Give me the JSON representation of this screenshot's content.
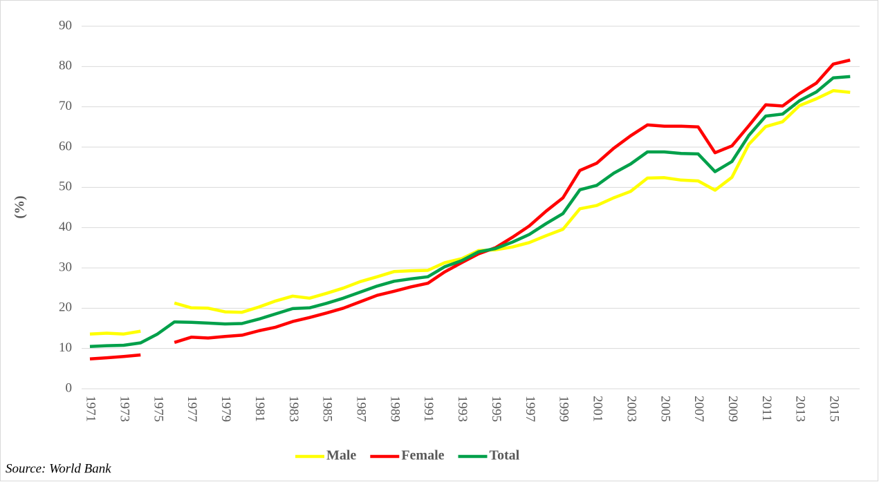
{
  "chart_data": {
    "type": "line",
    "y_label": "(%)",
    "source": "Source: World Bank",
    "categories": [
      "1971",
      null,
      "1973",
      null,
      "1975",
      null,
      "1977",
      null,
      "1979",
      null,
      "1981",
      null,
      "1983",
      null,
      "1985",
      null,
      "1987",
      null,
      "1989",
      null,
      "1991",
      null,
      "1993",
      null,
      "1995",
      null,
      "1997",
      null,
      "1999",
      null,
      "2001",
      null,
      "2003",
      null,
      "2005",
      null,
      "2007",
      null,
      "2009",
      null,
      "2011",
      null,
      "2013",
      null,
      "2015",
      null
    ],
    "series": [
      {
        "name": "Male",
        "color": "#ffff00",
        "values": [
          13.6,
          13.8,
          13.6,
          14.3,
          null,
          21.3,
          20.1,
          20.0,
          19.1,
          19.0,
          20.3,
          21.8,
          23.0,
          22.5,
          23.7,
          25.0,
          26.6,
          27.8,
          29.1,
          29.3,
          29.4,
          31.3,
          32.3,
          34.3,
          34.5,
          35.2,
          36.3,
          38.0,
          39.6,
          44.7,
          45.5,
          47.4,
          49.0,
          52.3,
          52.4,
          51.8,
          51.6,
          49.3,
          52.5,
          60.7,
          65.1,
          66.3,
          70.3,
          72.0,
          74.0,
          73.6
        ]
      },
      {
        "name": "Female",
        "color": "#ff0000",
        "values": [
          7.4,
          7.7,
          8.0,
          8.4,
          null,
          11.5,
          12.8,
          12.6,
          13.0,
          13.3,
          14.4,
          15.3,
          16.7,
          17.7,
          18.8,
          20.0,
          21.6,
          23.2,
          24.2,
          25.3,
          26.2,
          29.0,
          31.3,
          33.5,
          35.0,
          37.6,
          40.4,
          44.1,
          47.4,
          54.2,
          56.0,
          59.7,
          62.8,
          65.5,
          65.2,
          65.2,
          65.0,
          58.6,
          60.3,
          65.3,
          70.5,
          70.2,
          73.3,
          75.9,
          80.6,
          81.6
        ]
      },
      {
        "name": "Total",
        "color": "#00a04a",
        "values": [
          10.5,
          10.7,
          10.8,
          11.4,
          13.6,
          16.6,
          16.5,
          16.3,
          16.1,
          16.2,
          17.3,
          18.6,
          19.9,
          20.1,
          21.2,
          22.5,
          24.0,
          25.5,
          26.7,
          27.3,
          27.8,
          30.3,
          31.8,
          34.0,
          34.8,
          36.4,
          38.3,
          41.0,
          43.5,
          49.4,
          50.5,
          53.5,
          55.8,
          58.8,
          58.8,
          58.4,
          58.3,
          53.9,
          56.4,
          62.9,
          67.7,
          68.2,
          71.5,
          73.7,
          77.2,
          77.5
        ]
      }
    ],
    "ylim": [
      0,
      90
    ],
    "yticks": [
      0,
      10,
      20,
      30,
      40,
      50,
      60,
      70,
      80,
      90
    ],
    "grid": true,
    "legend": "bottom"
  }
}
